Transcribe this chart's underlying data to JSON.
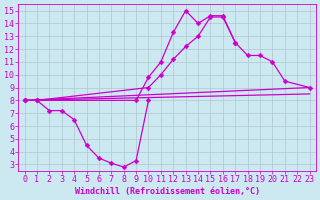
{
  "xlabel": "Windchill (Refroidissement éolien,°C)",
  "xlim": [
    -0.5,
    23.5
  ],
  "ylim": [
    2.5,
    15.5
  ],
  "xticks": [
    0,
    1,
    2,
    3,
    4,
    5,
    6,
    7,
    8,
    9,
    10,
    11,
    12,
    13,
    14,
    15,
    16,
    17,
    18,
    19,
    20,
    21,
    22,
    23
  ],
  "yticks": [
    3,
    4,
    5,
    6,
    7,
    8,
    9,
    10,
    11,
    12,
    13,
    14,
    15
  ],
  "bg_color": "#cce8f0",
  "line_color": "#cc00cc",
  "grid_color": "#b0c8d0",
  "line1_x": [
    0,
    1,
    2,
    3,
    4,
    5,
    6,
    7,
    8,
    9,
    10
  ],
  "line1_y": [
    8.0,
    8.0,
    7.2,
    7.2,
    6.5,
    4.5,
    3.5,
    3.1,
    2.8,
    3.3,
    8.0
  ],
  "line2_x": [
    0,
    1,
    9,
    10,
    11,
    12,
    13,
    14,
    15,
    16,
    17
  ],
  "line2_y": [
    8.0,
    8.0,
    8.0,
    9.8,
    11.0,
    13.3,
    15.0,
    14.0,
    14.6,
    14.6,
    12.5
  ],
  "line3_x": [
    0,
    1,
    10,
    11,
    12,
    13,
    14,
    15,
    16,
    17,
    18,
    19,
    20,
    21,
    23
  ],
  "line3_y": [
    8.0,
    8.0,
    9.0,
    10.0,
    11.2,
    12.2,
    13.0,
    14.5,
    14.5,
    12.5,
    11.5,
    11.5,
    11.0,
    9.5,
    9.0
  ],
  "line4_x": [
    0,
    23
  ],
  "line4_y": [
    8.0,
    9.0
  ],
  "line5_x": [
    0,
    23
  ],
  "line5_y": [
    8.0,
    8.5
  ],
  "tick_fontsize": 6,
  "xlabel_fontsize": 6
}
